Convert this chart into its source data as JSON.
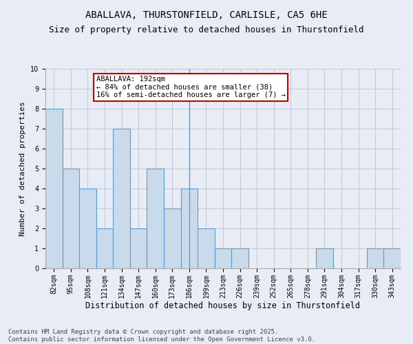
{
  "title": "ABALLAVA, THURSTONFIELD, CARLISLE, CA5 6HE",
  "subtitle": "Size of property relative to detached houses in Thurstonfield",
  "xlabel": "Distribution of detached houses by size in Thurstonfield",
  "ylabel": "Number of detached properties",
  "categories": [
    "82sqm",
    "95sqm",
    "108sqm",
    "121sqm",
    "134sqm",
    "147sqm",
    "160sqm",
    "173sqm",
    "186sqm",
    "199sqm",
    "213sqm",
    "226sqm",
    "239sqm",
    "252sqm",
    "265sqm",
    "278sqm",
    "291sqm",
    "304sqm",
    "317sqm",
    "330sqm",
    "343sqm"
  ],
  "values": [
    8,
    5,
    4,
    2,
    7,
    2,
    5,
    3,
    4,
    2,
    1,
    1,
    0,
    0,
    0,
    0,
    1,
    0,
    0,
    1,
    1
  ],
  "bar_color": "#c9daea",
  "bar_edge_color": "#5b9bd5",
  "aballava_line_idx": 8,
  "annotation_text": "ABALLAVA: 192sqm\n← 84% of detached houses are smaller (38)\n16% of semi-detached houses are larger (7) →",
  "annotation_box_color": "#ffffff",
  "annotation_box_edge": "#cc0000",
  "ylim": [
    0,
    10
  ],
  "yticks": [
    0,
    1,
    2,
    3,
    4,
    5,
    6,
    7,
    8,
    9,
    10
  ],
  "grid_color": "#c0c8d8",
  "background_color": "#e8edf5",
  "footer": "Contains HM Land Registry data © Crown copyright and database right 2025.\nContains public sector information licensed under the Open Government Licence v3.0.",
  "title_fontsize": 10,
  "subtitle_fontsize": 9,
  "xlabel_fontsize": 8.5,
  "ylabel_fontsize": 8,
  "tick_fontsize": 7,
  "footer_fontsize": 6.5,
  "annot_fontsize": 7.5
}
